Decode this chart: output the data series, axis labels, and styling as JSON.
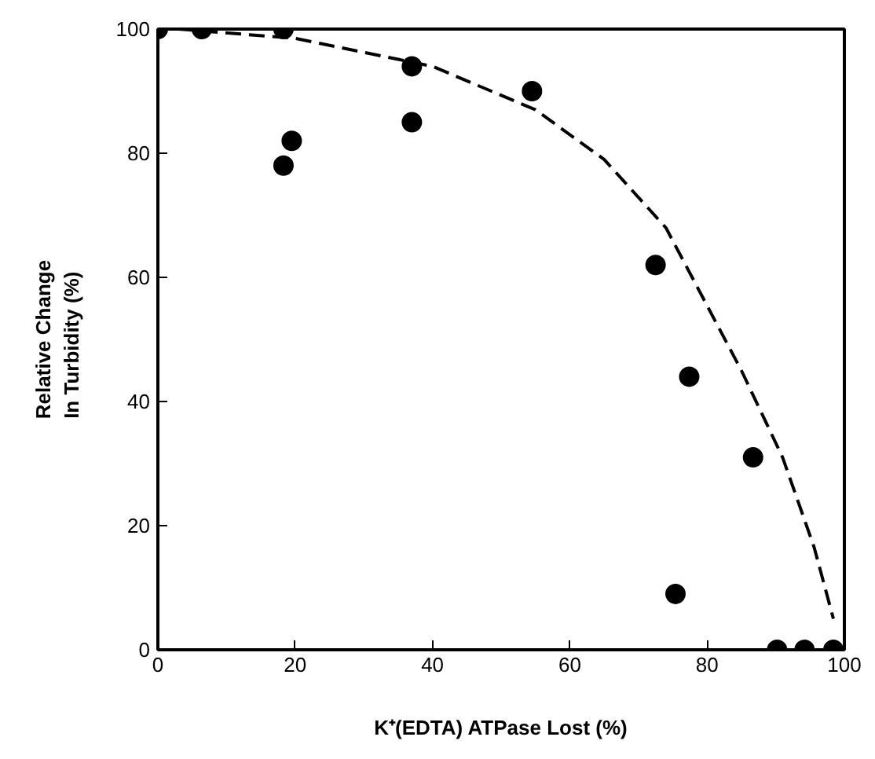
{
  "chart_data": {
    "type": "scatter",
    "xlabel": "K⁺(EDTA) ATPase Lost (%)",
    "ylabel": "Relative Change\nIn  Turbidity  (%)",
    "xlim": [
      0,
      100
    ],
    "ylim": [
      0,
      100
    ],
    "xticks": [
      0,
      20,
      40,
      60,
      80,
      100
    ],
    "yticks": [
      0,
      20,
      40,
      60,
      80,
      100
    ],
    "grid": false,
    "series": [
      {
        "marker": "circle",
        "color": "#000000",
        "x": [
          0,
          6.4,
          18.3,
          18.3,
          19.5,
          37,
          37,
          54.5,
          72.5,
          77.4,
          86.7,
          75.4,
          90.2,
          94.2,
          98.4
        ],
        "values": [
          100,
          100,
          100,
          78,
          82,
          94,
          85,
          90,
          62,
          44,
          31,
          9,
          0,
          0,
          0
        ]
      },
      {
        "type": "line",
        "marker": "none",
        "line_style": "dashed",
        "color": "#000000",
        "x": [
          3,
          20,
          40,
          55,
          65,
          74,
          85,
          91,
          95.6,
          98.4
        ],
        "values": [
          100,
          98.5,
          94,
          87,
          79,
          68,
          45,
          31,
          16.5,
          5
        ]
      }
    ]
  }
}
